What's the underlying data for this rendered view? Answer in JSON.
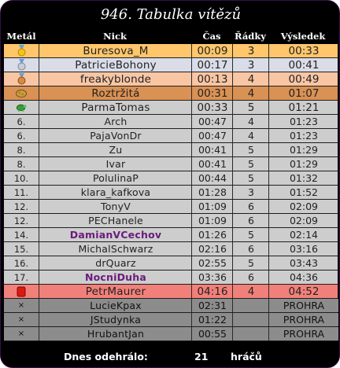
{
  "title": "946. Tabulka vítězů",
  "columns": {
    "medal": "Metál",
    "nick": "Nick",
    "time": "Čas",
    "rows": "Řádky",
    "result": "Výsledek"
  },
  "entries": [
    {
      "medal": "",
      "icon": "gold-medal-icon",
      "nick": "Buresova_M",
      "time": "00:09",
      "rows": "3",
      "result": "00:33",
      "bg": "#ffc66b"
    },
    {
      "medal": "",
      "icon": "silver-medal-icon",
      "nick": "PatricieBohony",
      "time": "00:17",
      "rows": "3",
      "result": "00:41",
      "bg": "#dadde8"
    },
    {
      "medal": "",
      "icon": "bronze-medal-icon",
      "nick": "freakyblonde",
      "time": "00:13",
      "rows": "4",
      "result": "00:49",
      "bg": "#f9c6a4"
    },
    {
      "medal": "",
      "icon": "potato-icon",
      "nick": "Roztržitá",
      "time": "00:31",
      "rows": "4",
      "result": "01:07",
      "bg": "#d99154"
    },
    {
      "medal": "",
      "icon": "turtle-icon",
      "nick": "ParmaTomas",
      "time": "00:33",
      "rows": "5",
      "result": "01:21",
      "bg": "#cdcdcd"
    },
    {
      "medal": "6.",
      "icon": "",
      "nick": "Arch",
      "time": "00:47",
      "rows": "4",
      "result": "01:23",
      "bg": "#cdcdcd"
    },
    {
      "medal": "6.",
      "icon": "",
      "nick": "PajaVonDr",
      "time": "00:47",
      "rows": "4",
      "result": "01:23",
      "bg": "#cdcdcd"
    },
    {
      "medal": "8.",
      "icon": "",
      "nick": "Zu",
      "time": "00:41",
      "rows": "5",
      "result": "01:29",
      "bg": "#cdcdcd"
    },
    {
      "medal": "8.",
      "icon": "",
      "nick": "Ivar",
      "time": "00:41",
      "rows": "5",
      "result": "01:29",
      "bg": "#cdcdcd"
    },
    {
      "medal": "10.",
      "icon": "",
      "nick": "PolulinaP",
      "time": "00:44",
      "rows": "5",
      "result": "01:32",
      "bg": "#cdcdcd"
    },
    {
      "medal": "11.",
      "icon": "",
      "nick": "klara_kafkova",
      "time": "01:28",
      "rows": "3",
      "result": "01:52",
      "bg": "#cdcdcd"
    },
    {
      "medal": "12.",
      "icon": "",
      "nick": "TonyV",
      "time": "01:09",
      "rows": "6",
      "result": "02:09",
      "bg": "#cdcdcd"
    },
    {
      "medal": "12.",
      "icon": "",
      "nick": "PECHanele",
      "time": "01:09",
      "rows": "6",
      "result": "02:09",
      "bg": "#cdcdcd"
    },
    {
      "medal": "14.",
      "icon": "",
      "nick": "DamianVCechov",
      "time": "01:26",
      "rows": "5",
      "result": "02:14",
      "bg": "#cdcdcd",
      "special": true
    },
    {
      "medal": "15.",
      "icon": "",
      "nick": "MichalSchwarz",
      "time": "02:16",
      "rows": "6",
      "result": "03:16",
      "bg": "#cdcdcd"
    },
    {
      "medal": "16.",
      "icon": "",
      "nick": "drQuarz",
      "time": "02:55",
      "rows": "5",
      "result": "03:43",
      "bg": "#cdcdcd"
    },
    {
      "medal": "17.",
      "icon": "",
      "nick": "NocniDuha",
      "time": "03:36",
      "rows": "6",
      "result": "04:36",
      "bg": "#cdcdcd",
      "special": true
    },
    {
      "medal": "",
      "icon": "red-flag-icon",
      "nick": "PetrMaurer",
      "time": "04:16",
      "rows": "4",
      "result": "04:52",
      "bg": "#f2807a"
    },
    {
      "medal": "×",
      "icon": "",
      "nick": "LucieKpax",
      "time": "02:31",
      "rows": "",
      "result": "PROHRA",
      "bg": "#8c8c8c",
      "fail": true
    },
    {
      "medal": "×",
      "icon": "",
      "nick": "JStudynka",
      "time": "01:22",
      "rows": "",
      "result": "PROHRA",
      "bg": "#8c8c8c",
      "fail": true
    },
    {
      "medal": "×",
      "icon": "",
      "nick": "HrubantJan",
      "time": "00:55",
      "rows": "",
      "result": "PROHRA",
      "bg": "#8c8c8c",
      "fail": true
    }
  ],
  "footer": {
    "label": "Dnes odehrálo:",
    "count": "21",
    "unit": "hráčů"
  }
}
